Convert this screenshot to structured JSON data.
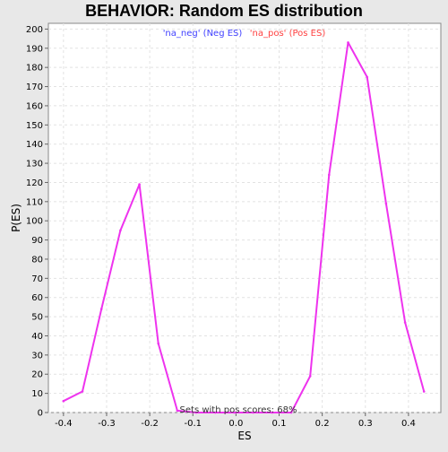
{
  "chart_data": {
    "type": "line",
    "title": "BEHAVIOR: Random ES distribution",
    "xlabel": "ES",
    "ylabel": "P(ES)",
    "xlim": [
      -0.435,
      0.475
    ],
    "ylim": [
      0,
      203
    ],
    "xticks": [
      -0.4,
      -0.3,
      -0.2,
      -0.1,
      0.0,
      0.1,
      0.2,
      0.3,
      0.4
    ],
    "xtick_labels": [
      "-0.4",
      "-0.3",
      "-0.2",
      "-0.1",
      "0.0",
      "0.1",
      "0.2",
      "0.3",
      "0.4"
    ],
    "yticks": [
      0,
      10,
      20,
      30,
      40,
      50,
      60,
      70,
      80,
      90,
      100,
      110,
      120,
      130,
      140,
      150,
      160,
      170,
      180,
      190,
      200
    ],
    "grid": true,
    "legend_placement": "top-center",
    "legend": [
      {
        "label": "'na_neg' (Neg ES)",
        "color": "#4040ff"
      },
      {
        "label": "'na_pos' (Pos ES)",
        "color": "#ff4040"
      }
    ],
    "annotation": "Sets with pos scores: 68%",
    "series": [
      {
        "color": "#ee33ee",
        "x": [
          -0.4,
          -0.356,
          -0.312,
          -0.268,
          -0.224,
          -0.18,
          -0.136,
          -0.092,
          -0.048,
          -0.004,
          0.04,
          0.084,
          0.128,
          0.172,
          0.216,
          0.26,
          0.304,
          0.348,
          0.392,
          0.436
        ],
        "y": [
          6,
          11,
          54,
          95,
          119,
          36,
          1,
          0,
          0,
          0,
          0,
          0,
          0,
          19,
          124,
          193,
          175,
          109,
          47,
          11
        ]
      }
    ]
  }
}
